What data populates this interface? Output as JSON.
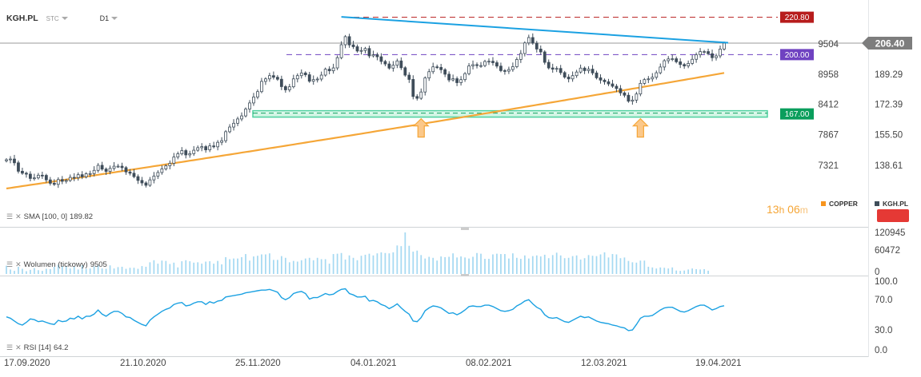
{
  "toolbar": {
    "symbol": "KGH.PL",
    "market": "STC",
    "interval": "D1"
  },
  "panes": {
    "price": {
      "indicator_label": "SMA [100,  0]",
      "indicator_value": "189.82"
    },
    "volume": {
      "indicator_label": "Wolumen  (tickowy)",
      "indicator_value": "9505"
    },
    "rsi": {
      "indicator_label": "RSI [14]",
      "indicator_value": "64.2"
    }
  },
  "timer": {
    "hours": "13",
    "h": "h",
    "minutes": "06",
    "m": "m"
  },
  "legend": [
    {
      "name": "COPPER",
      "color": "#f7941d"
    },
    {
      "name": "KGH.PL",
      "color": "#3f4d5a"
    }
  ],
  "colors": {
    "candle": "#3f4d5a",
    "sma": "#f5a637",
    "trendline": "#1ba1e2",
    "rsi": "#1ba1e2",
    "volume": "#a5d9f2",
    "support_zone": "#4fd1a0",
    "level_220": "#b71c1c",
    "level_200": "#6f42c1",
    "level_167": "#0a9e5c",
    "current_price": "#888888",
    "arrow": "#f5a637"
  },
  "chart_data": [
    {
      "type": "candlestick",
      "name": "KGH.PL",
      "x_labels": [
        "17.09.2020",
        "21.10.2020",
        "25.11.2020",
        "04.01.2021",
        "08.02.2021",
        "12.03.2021",
        "19.04.2021"
      ],
      "y_ticks_left": [
        "9504",
        "8958",
        "8412",
        "7867",
        "7321"
      ],
      "y_ticks_right": [
        "189.29",
        "172.39",
        "155.50",
        "138.61"
      ],
      "ylim": [
        124,
        227
      ],
      "levels": [
        {
          "label": "220.80",
          "value": 220.8,
          "style": "dashed"
        },
        {
          "label": "200.00",
          "value": 200.0,
          "style": "dashed"
        },
        {
          "label": "167.00",
          "value": 167.0,
          "style": "zone"
        }
      ],
      "current_price": {
        "label": "206.40",
        "value": 206.4
      },
      "close": [
        141.5,
        141.9,
        139.8,
        135.1,
        134.0,
        133.5,
        131.1,
        131.4,
        132.9,
        132.8,
        130.3,
        128.4,
        127.8,
        130.5,
        129.5,
        130.0,
        131.7,
        131.5,
        133.2,
        132.0,
        133.7,
        133.8,
        135.6,
        138.4,
        136.3,
        135.0,
        136.7,
        137.9,
        137.9,
        137.1,
        134.7,
        134.0,
        132.1,
        130.0,
        128.6,
        127.3,
        130.3,
        132.4,
        134.4,
        136.4,
        138.1,
        139.5,
        143.0,
        144.8,
        146.6,
        144.2,
        144.9,
        146.8,
        148.2,
        148.8,
        147.0,
        149.2,
        148.7,
        151.2,
        152.1,
        157.1,
        159.7,
        161.8,
        164.2,
        165.9,
        169.7,
        173.1,
        176.4,
        179.4,
        185.1,
        186.5,
        188.3,
        187.4,
        186.3,
        182.2,
        180.4,
        182.1,
        186.5,
        188.3,
        189.8,
        188.8,
        185.2,
        186.1,
        186.4,
        188.6,
        191.9,
        191.0,
        192.6,
        198.3,
        205.5,
        210.0,
        205.4,
        204.4,
        202.0,
        202.3,
        203.4,
        199.3,
        199.9,
        198.8,
        196.2,
        194.8,
        192.5,
        194.1,
        196.5,
        192.7,
        188.6,
        186.2,
        176.7,
        175.7,
        179.2,
        187.0,
        190.5,
        193.2,
        192.9,
        191.6,
        189.1,
        185.9,
        186.6,
        184.4,
        186.1,
        189.4,
        193.7,
        194.4,
        193.9,
        193.9,
        196.2,
        196.3,
        195.5,
        193.6,
        191.1,
        190.8,
        191.7,
        193.3,
        197.3,
        200.6,
        206.5,
        209.5,
        206.4,
        203.1,
        201.5,
        195.7,
        192.6,
        191.9,
        192.3,
        190.0,
        187.5,
        186.5,
        188.3,
        190.3,
        192.5,
        191.1,
        191.9,
        189.8,
        187.1,
        185.8,
        184.9,
        183.7,
        182.4,
        181.1,
        178.7,
        177.4,
        174.1,
        174.7,
        178.1,
        184.0,
        186.1,
        186.5,
        187.4,
        189.9,
        193.1,
        196.6,
        197.6,
        197.7,
        196.0,
        194.5,
        193.7,
        195.1,
        197.4,
        199.9,
        201.7,
        201.7,
        200.5,
        198.3,
        199.3,
        203.1,
        206.4
      ]
    },
    {
      "type": "line",
      "name": "SMA [100,  0]",
      "start": 125.5,
      "end": 189.8
    },
    {
      "type": "bar",
      "name": "Wolumen  (tickowy)",
      "y_ticks": [
        "120945",
        "60472",
        "0"
      ],
      "ylim": [
        0,
        120945
      ],
      "values": [
        24000,
        13000,
        9000,
        21000,
        15000,
        8000,
        12000,
        17000,
        11000,
        9000,
        15000,
        14000,
        21000,
        27000,
        23000,
        22000,
        16000,
        21000,
        13000,
        25000,
        15000,
        16000,
        22000,
        26000,
        16000,
        15000,
        25000,
        16000,
        20000,
        21000,
        15000,
        18000,
        18000,
        15000,
        23000,
        21000,
        34000,
        40000,
        30000,
        39000,
        38000,
        29000,
        33000,
        19000,
        37000,
        40000,
        37000,
        33000,
        34000,
        30000,
        36000,
        37000,
        30000,
        38000,
        28000,
        49000,
        43000,
        45000,
        45000,
        49000,
        58000,
        39000,
        51000,
        53000,
        57000,
        57000,
        60000,
        41000,
        41000,
        52000,
        47000,
        34000,
        38000,
        36000,
        40000,
        45000,
        47000,
        40000,
        47000,
        43000,
        43000,
        30000,
        58000,
        59000,
        61000,
        42000,
        54000,
        47000,
        40000,
        53000,
        56000,
        59000,
        54000,
        60000,
        63000,
        61000,
        60000,
        63000,
        83000,
        81000,
        120945,
        82000,
        65000,
        68000,
        55000,
        45000,
        50000,
        47000,
        39000,
        51000,
        49000,
        50000,
        60000,
        48000,
        51000,
        48000,
        45000,
        50000,
        61000,
        59000,
        44000,
        44000,
        57000,
        59000,
        58000,
        58000,
        45000,
        60000,
        47000,
        44000,
        54000,
        45000,
        52000,
        54000,
        51000,
        56000,
        46000,
        55000,
        62000,
        54000,
        46000,
        47000,
        52000,
        54000,
        42000,
        46000,
        55000,
        53000,
        52000,
        57000,
        63000,
        48000,
        58000,
        57000,
        46000,
        48000,
        38000,
        34000,
        33000,
        39000,
        39000,
        21000,
        19000,
        16000,
        19000,
        18000,
        16000,
        19000,
        10000,
        9000,
        10000,
        13000,
        16000,
        14000,
        13000,
        14000,
        9505
      ]
    },
    {
      "type": "line",
      "name": "RSI [14]",
      "y_ticks": [
        "100.0",
        "70.0",
        "30.0",
        "0.0"
      ],
      "ylim": [
        0,
        100
      ],
      "values": [
        48,
        46,
        42,
        38,
        36,
        40,
        45,
        44,
        41,
        42,
        40,
        38,
        37,
        43,
        41,
        42,
        46,
        45,
        49,
        45,
        49,
        49,
        52,
        58,
        52,
        49,
        53,
        56,
        56,
        53,
        48,
        47,
        43,
        40,
        37,
        35,
        43,
        48,
        52,
        56,
        59,
        61,
        66,
        68,
        69,
        64,
        65,
        68,
        70,
        70,
        66,
        70,
        68,
        71,
        72,
        77,
        78,
        79,
        80,
        81,
        83,
        84,
        85,
        86,
        87,
        87,
        88,
        86,
        84,
        76,
        73,
        76,
        82,
        84,
        85,
        82,
        74,
        76,
        76,
        79,
        82,
        80,
        81,
        85,
        88,
        89,
        82,
        80,
        77,
        77,
        78,
        71,
        72,
        70,
        66,
        64,
        60,
        63,
        67,
        61,
        56,
        52,
        42,
        41,
        47,
        57,
        61,
        64,
        63,
        61,
        57,
        53,
        54,
        51,
        54,
        58,
        63,
        64,
        63,
        63,
        65,
        65,
        63,
        60,
        57,
        56,
        57,
        59,
        64,
        67,
        71,
        73,
        67,
        62,
        59,
        51,
        47,
        46,
        47,
        44,
        41,
        40,
        43,
        46,
        49,
        47,
        48,
        45,
        42,
        40,
        39,
        38,
        36,
        35,
        33,
        32,
        28,
        29,
        37,
        46,
        49,
        49,
        50,
        54,
        58,
        61,
        62,
        62,
        59,
        56,
        55,
        57,
        60,
        63,
        65,
        65,
        62,
        58,
        60,
        63,
        64.2
      ]
    }
  ]
}
